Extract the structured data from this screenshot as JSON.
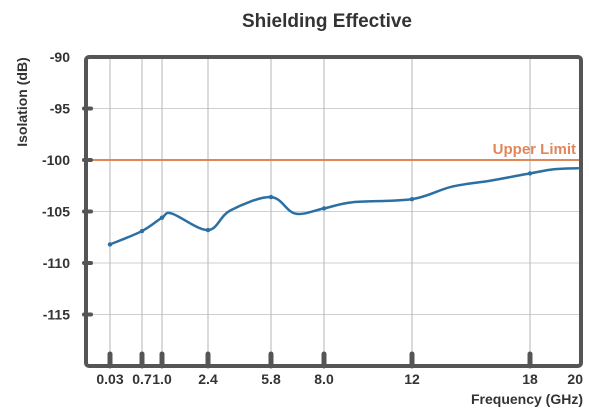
{
  "chart_data": {
    "type": "line",
    "title": "Shielding Effective",
    "xlabel": "Frequency (GHz)",
    "ylabel": "Isolation (dB)",
    "x_scale": "categorical-stretched",
    "xticks": [
      {
        "label": "0.03",
        "value": 0.03
      },
      {
        "label": "0.7",
        "value": 0.7
      },
      {
        "label": "1.0",
        "value": 1.0
      },
      {
        "label": "2.4",
        "value": 2.4
      },
      {
        "label": "5.8",
        "value": 5.8
      },
      {
        "label": "8.0",
        "value": 8.0
      },
      {
        "label": "12",
        "value": 12
      },
      {
        "label": "18",
        "value": 18
      },
      {
        "label": "20",
        "value": 20
      }
    ],
    "yticks": [
      "-90",
      "-95",
      "-100",
      "-105",
      "-110",
      "-115"
    ],
    "ylim": [
      -120,
      -90
    ],
    "grid": "vertical-at-xticks-and-horizontal-at-yticks",
    "reference_line": {
      "label": "Upper Limit",
      "y": -100,
      "color": "#e0875a"
    },
    "series": [
      {
        "color": "#2c6fa3",
        "x": [
          0.03,
          0.7,
          1.0,
          1.3,
          2.4,
          3.6,
          5.8,
          6.8,
          8.0,
          9.3,
          12,
          14,
          16,
          18,
          19,
          20
        ],
        "y": [
          -108.2,
          -106.9,
          -105.6,
          -105.2,
          -106.8,
          -104.9,
          -103.6,
          -105.2,
          -104.7,
          -104.1,
          -103.8,
          -102.6,
          -102.0,
          -101.3,
          -100.9,
          -100.8
        ],
        "markers_at": [
          0.03,
          0.7,
          1.0,
          2.4,
          5.8,
          8.0,
          12,
          18
        ]
      }
    ]
  }
}
